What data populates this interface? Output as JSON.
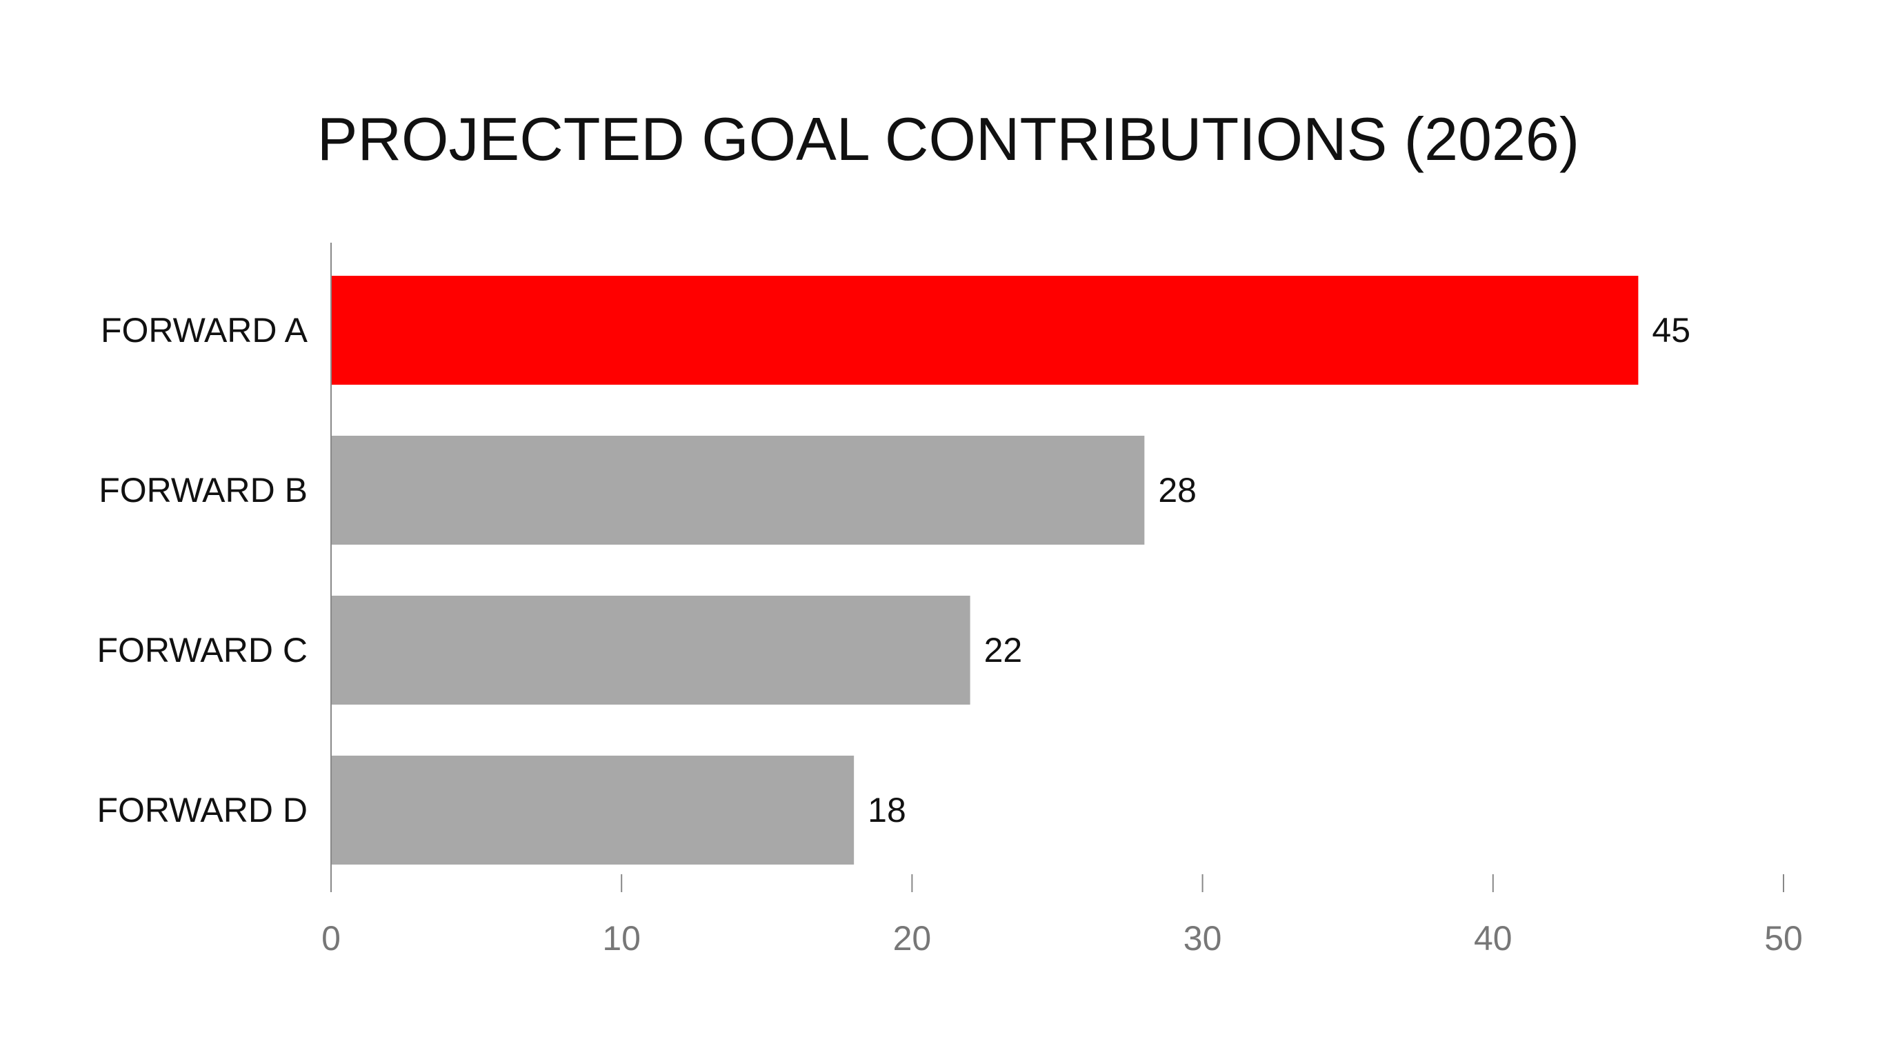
{
  "chart_data": {
    "type": "bar",
    "orientation": "horizontal",
    "title": "PROJECTED GOAL CONTRIBUTIONS (2026)",
    "categories": [
      "FORWARD A",
      "FORWARD B",
      "FORWARD C",
      "FORWARD D"
    ],
    "values": [
      45,
      28,
      22,
      18
    ],
    "value_labels": [
      "45",
      "28",
      "22",
      "18"
    ],
    "xlim": [
      0,
      50
    ],
    "x_ticks": [
      0,
      10,
      20,
      30,
      40,
      50
    ],
    "x_tick_labels": [
      "0",
      "10",
      "20",
      "30",
      "40",
      "50"
    ],
    "xlabel": "",
    "ylabel": "",
    "grid": false,
    "legend": "none",
    "colors": {
      "highlight": "#ff0000",
      "default": "#a8a8a8",
      "axis": "#888888",
      "tick_label": "#777777",
      "text": "#111111"
    },
    "highlight_index": 0
  }
}
